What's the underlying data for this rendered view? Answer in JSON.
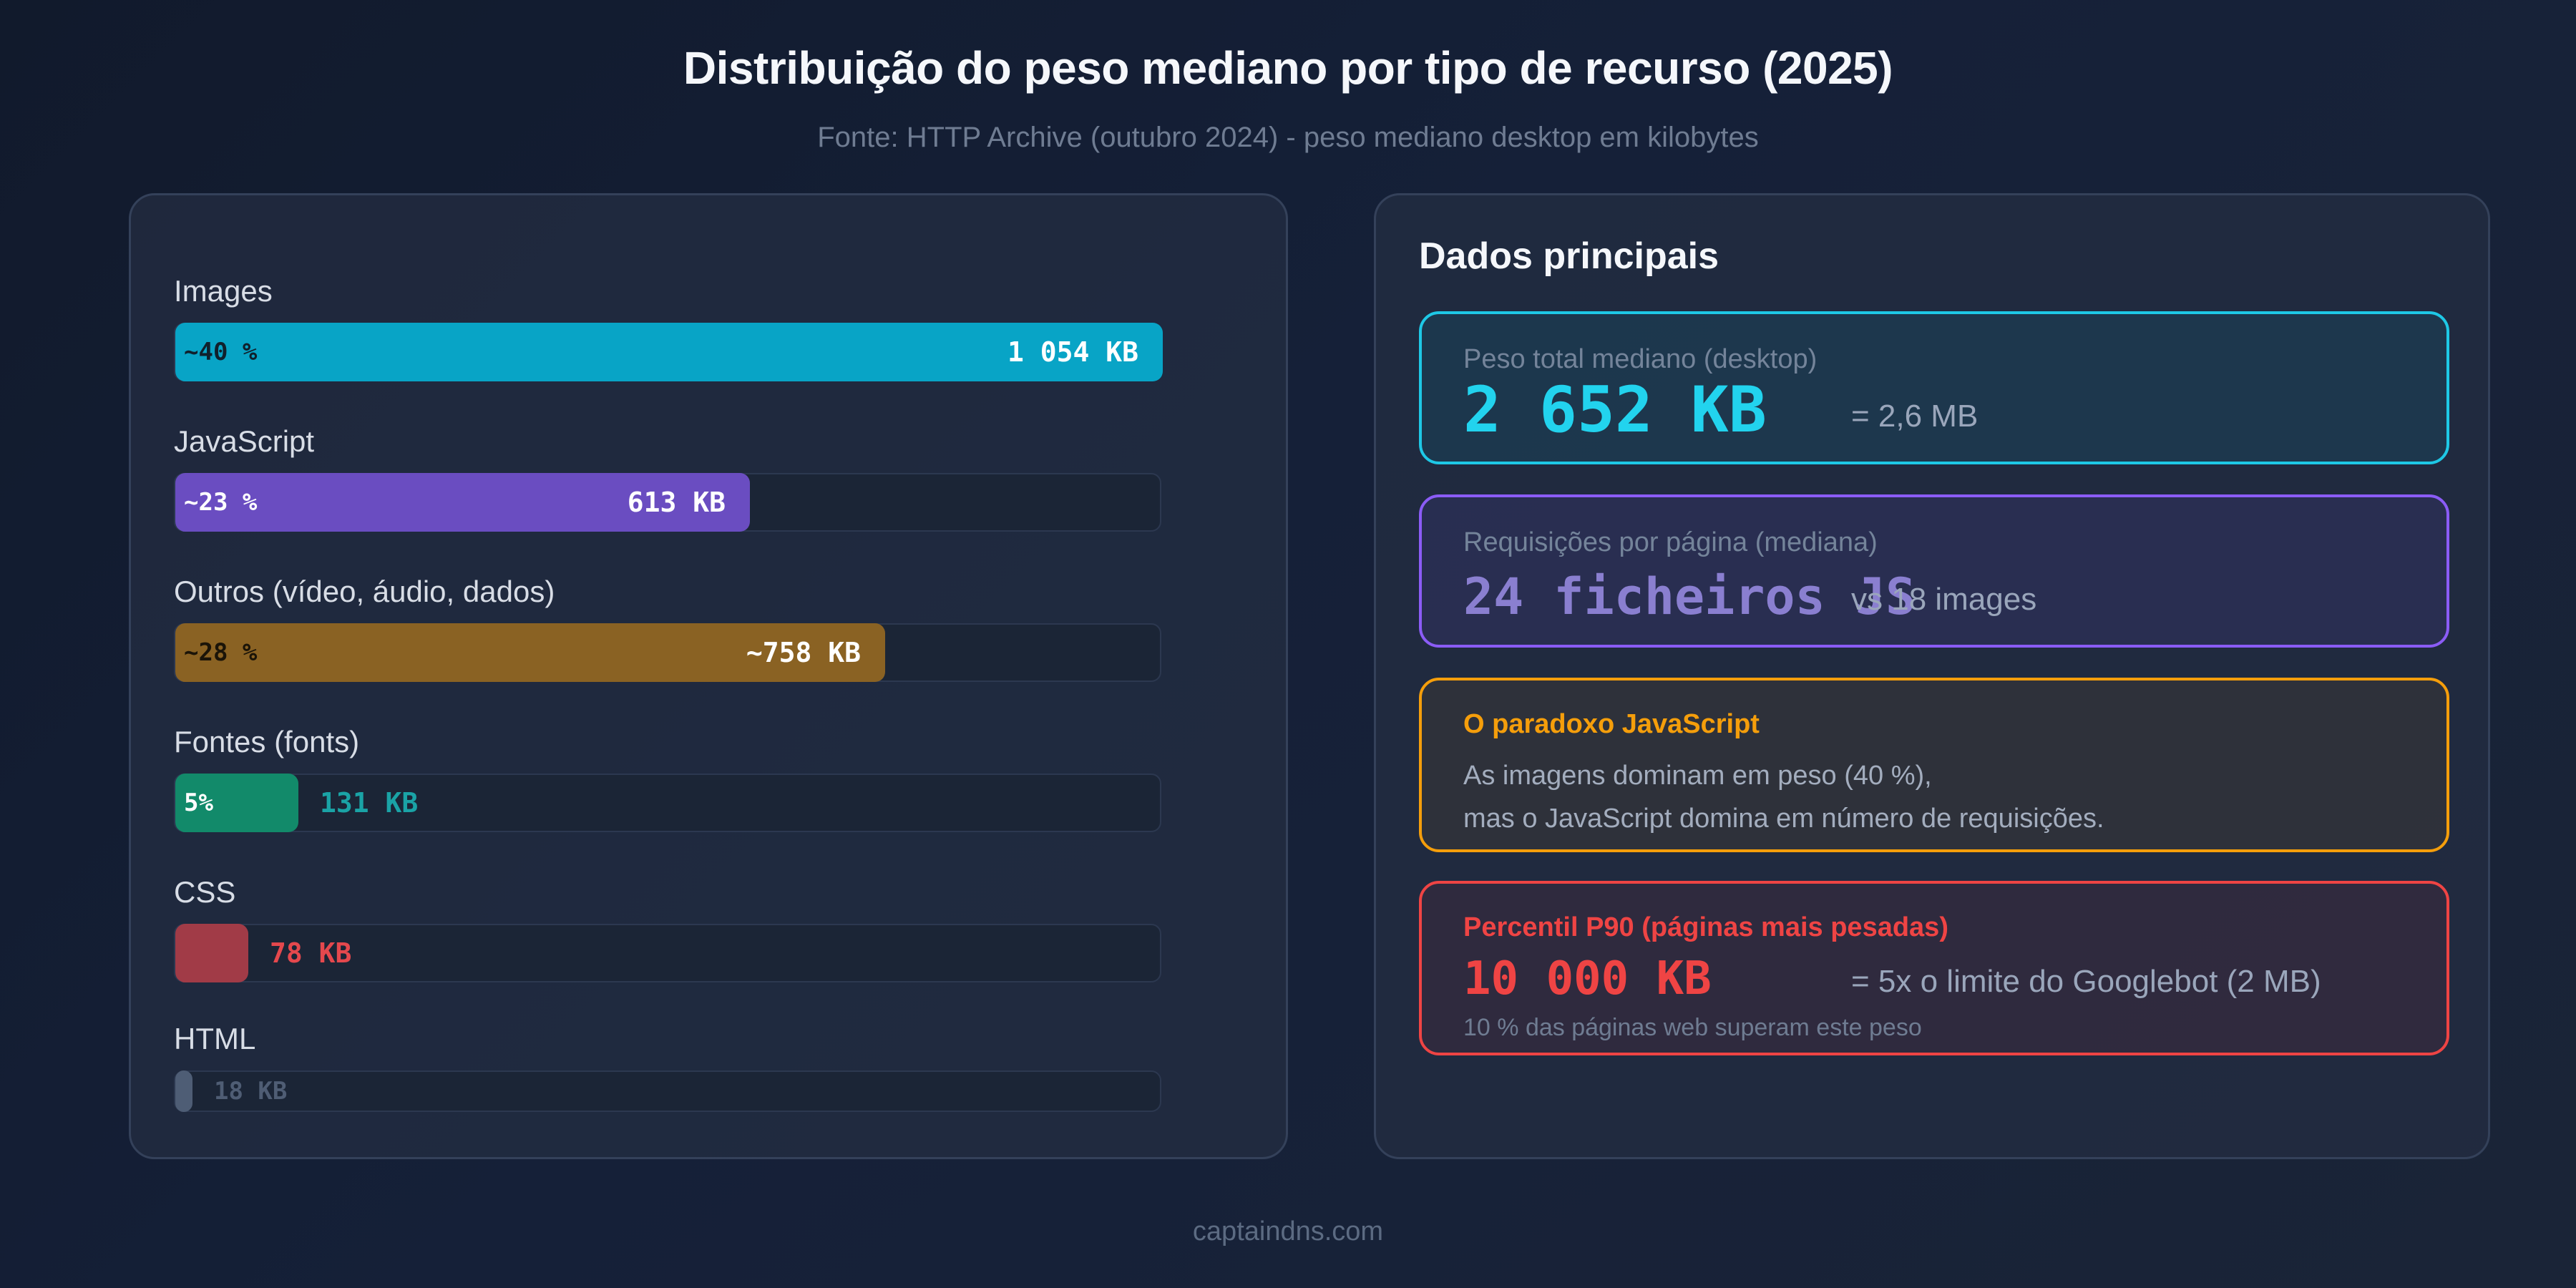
{
  "title": "Distribuição do peso mediano por tipo de recurso (2025)",
  "subtitle": "Fonte: HTTP Archive (outubro 2024) - peso mediano desktop em kilobytes",
  "chart_data": {
    "type": "bar",
    "orientation": "horizontal",
    "unit": "KB",
    "xlim": [
      0,
      1054
    ],
    "categories": [
      "Images",
      "JavaScript",
      "Outros (vídeo, áudio, dados)",
      "Fontes (fonts)",
      "CSS",
      "HTML"
    ],
    "values": [
      1054,
      613,
      758,
      131,
      78,
      18
    ],
    "value_labels": [
      "1 054 KB",
      "613 KB",
      "~758 KB",
      "131 KB",
      "78 KB",
      "18 KB"
    ],
    "percent_labels": [
      "~40 %",
      "~23 %",
      "~28 %",
      "5%",
      "",
      ""
    ],
    "colors": [
      "#08a4c6",
      "#6a4dc1",
      "#8a6223",
      "#128a6a",
      "#a13b47",
      "#4e5d75"
    ],
    "value_label_colors": [
      "#ffffff",
      "#ffffff",
      "#ffffff",
      "#1aa3a6",
      "#e5484d",
      "#4f5d74"
    ],
    "percent_label_colors": [
      "#10202c",
      "#ffffff",
      "#1b1408",
      "#ffffff",
      "#ffffff",
      "#ffffff"
    ]
  },
  "right_panel": {
    "heading": "Dados principais",
    "cards": [
      {
        "label": "Peso total mediano (desktop)",
        "big": "2 652 KB",
        "aside": "= 2,6 MB",
        "border_color": "#1ec8e6",
        "big_color": "#22d3ee",
        "label_color": "#74849a"
      },
      {
        "label": "Requisições por página (mediana)",
        "big": "24 ficheiros JS",
        "aside": "vs 18 images",
        "border_color": "#8b5cf6",
        "big_color": "#8a7fd0",
        "label_color": "#74849a"
      },
      {
        "label": "O paradoxo JavaScript",
        "line1": "As imagens dominam em peso (40 %),",
        "line2": "mas o JavaScript domina em número de requisições.",
        "border_color": "#f59e0b",
        "label_color": "#f59e0b"
      },
      {
        "label": "Percentil P90 (páginas mais pesadas)",
        "big": "10 000 KB",
        "aside": "= 5x o limite do Googlebot (2 MB)",
        "note": "10 % das páginas web superam este peso",
        "border_color": "#ef4444",
        "big_color": "#ef4444",
        "label_color": "#ef4444"
      }
    ]
  },
  "footer": "captaindns.com"
}
